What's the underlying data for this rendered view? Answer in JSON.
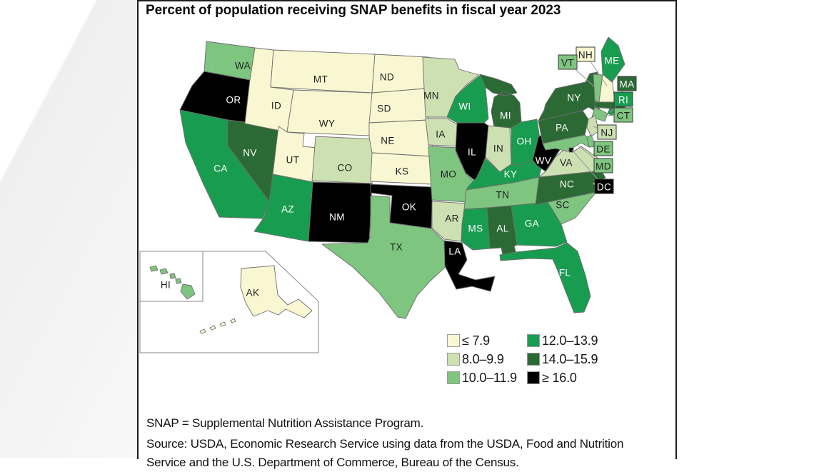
{
  "panel": {
    "title": "Percent of population receiving SNAP benefits in fiscal year 2023"
  },
  "footnotes": {
    "definition": "SNAP = Supplemental Nutrition Assistance Program.",
    "source": "Source: USDA, Economic Research Service using data from the USDA, Food and Nutrition Service and the U.S. Department of Commerce, Bureau of the Census."
  },
  "legend": {
    "items": [
      {
        "label": "≤ 7.9",
        "color": "#f9f7d2"
      },
      {
        "label": "8.0–9.9",
        "color": "#cde0b2"
      },
      {
        "label": "10.0–11.9",
        "color": "#7ec57f"
      },
      {
        "label": "12.0–13.9",
        "color": "#189d50"
      },
      {
        "label": "14.0–15.9",
        "color": "#2b6a34"
      },
      {
        "label": "≥ 16.0",
        "color": "#000000"
      }
    ]
  },
  "chart_data": {
    "type": "choropleth",
    "title": "Percent of population receiving SNAP benefits in fiscal year 2023",
    "region": "United States, by state",
    "buckets": [
      "≤ 7.9",
      "8.0–9.9",
      "10.0–11.9",
      "12.0–13.9",
      "14.0–15.9",
      "≥ 16.0"
    ],
    "states": {
      "WA": "10.0–11.9",
      "OR": "≥ 16.0",
      "CA": "12.0–13.9",
      "NV": "14.0–15.9",
      "ID": "≤ 7.9",
      "MT": "≤ 7.9",
      "WY": "≤ 7.9",
      "UT": "≤ 7.9",
      "CO": "8.0–9.9",
      "AZ": "12.0–13.9",
      "NM": "≥ 16.0",
      "ND": "≤ 7.9",
      "SD": "≤ 7.9",
      "NE": "≤ 7.9",
      "KS": "≤ 7.9",
      "OK": "≥ 16.0",
      "TX": "10.0–11.9",
      "MN": "8.0–9.9",
      "IA": "8.0–9.9",
      "MO": "10.0–11.9",
      "AR": "8.0–9.9",
      "LA": "≥ 16.0",
      "WI": "12.0–13.9",
      "MI": "14.0–15.9",
      "IL": "≥ 16.0",
      "IN": "8.0–9.9",
      "OH": "12.0–13.9",
      "KY": "12.0–13.9",
      "TN": "10.0–11.9",
      "MS": "12.0–13.9",
      "AL": "14.0–15.9",
      "GA": "12.0–13.9",
      "SC": "10.0–11.9",
      "NC": "14.0–15.9",
      "WV": "≥ 16.0",
      "VA": "8.0–9.9",
      "FL": "12.0–13.9",
      "PA": "14.0–15.9",
      "NY": "14.0–15.9",
      "VT": "10.0–11.9",
      "NH": "≤ 7.9",
      "ME": "12.0–13.9",
      "MA": "14.0–15.9",
      "RI": "12.0–13.9",
      "CT": "10.0–11.9",
      "NJ": "8.0–9.9",
      "DE": "10.0–11.9",
      "MD": "10.0–11.9",
      "DC": "≥ 16.0",
      "HI": "10.0–11.9",
      "AK": "≤ 7.9"
    },
    "boxed_states": [
      "NH",
      "VT",
      "MA",
      "RI",
      "CT",
      "NJ",
      "DE",
      "MD",
      "DC"
    ]
  }
}
